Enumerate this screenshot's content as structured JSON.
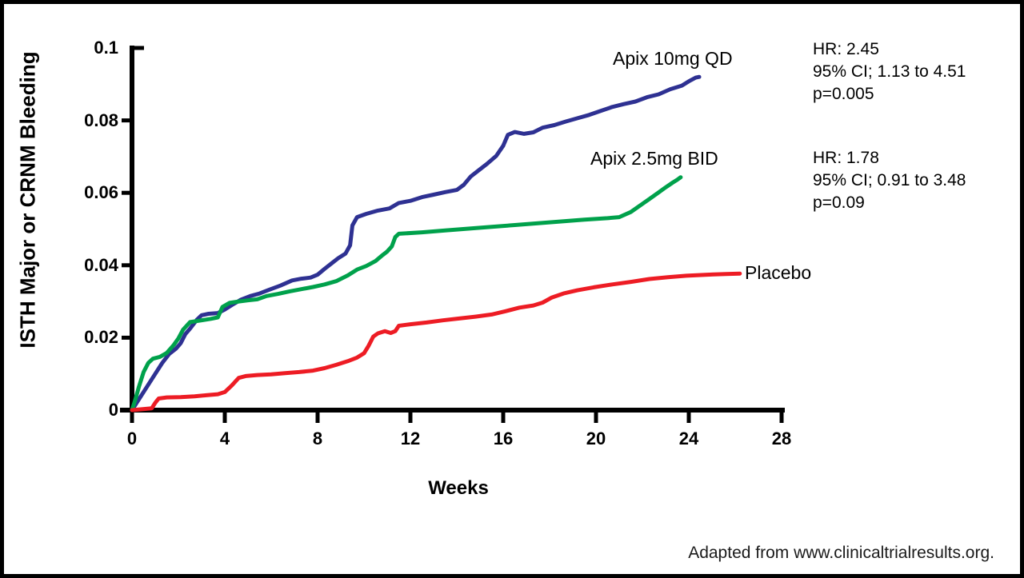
{
  "figure": {
    "source_note": "Adapted from www.clinicaltrialresults.org."
  },
  "chart_data": {
    "type": "line",
    "title": "",
    "xlabel": "Weeks",
    "ylabel": "ISTH Major or CRNM Bleeding",
    "xlim": [
      0,
      28
    ],
    "ylim": [
      0,
      0.1
    ],
    "x_ticks": [
      0,
      4,
      8,
      12,
      16,
      20,
      24,
      28
    ],
    "x_tick_labels": [
      "0",
      "4",
      "8",
      "12",
      "16",
      "20",
      "24",
      "28"
    ],
    "y_ticks": [
      0,
      0.02,
      0.04,
      0.06,
      0.08,
      0.1
    ],
    "y_tick_labels": [
      "0",
      "0.02",
      "0.04",
      "0.06",
      "0.08",
      "0.1"
    ],
    "grid": false,
    "legend_position": "inline-labels-at-curve-ends",
    "axis_color": "#000000",
    "series": [
      {
        "name": "Apix 10mg QD",
        "color": "#2E3192",
        "points": [
          [
            0,
            0
          ],
          [
            0.3,
            0.003
          ],
          [
            0.6,
            0.006
          ],
          [
            1.0,
            0.01
          ],
          [
            1.3,
            0.013
          ],
          [
            1.6,
            0.0155
          ],
          [
            1.9,
            0.017
          ],
          [
            2.1,
            0.0185
          ],
          [
            2.3,
            0.021
          ],
          [
            2.5,
            0.0225
          ],
          [
            2.8,
            0.025
          ],
          [
            3.0,
            0.0262
          ],
          [
            3.3,
            0.0266
          ],
          [
            3.7,
            0.0268
          ],
          [
            4.0,
            0.0278
          ],
          [
            4.3,
            0.029
          ],
          [
            4.7,
            0.0305
          ],
          [
            5.1,
            0.0315
          ],
          [
            5.5,
            0.0322
          ],
          [
            5.9,
            0.0332
          ],
          [
            6.4,
            0.0344
          ],
          [
            6.9,
            0.0358
          ],
          [
            7.3,
            0.0363
          ],
          [
            7.7,
            0.0366
          ],
          [
            8.0,
            0.0374
          ],
          [
            8.3,
            0.039
          ],
          [
            8.6,
            0.0405
          ],
          [
            8.9,
            0.042
          ],
          [
            9.2,
            0.0432
          ],
          [
            9.4,
            0.0455
          ],
          [
            9.5,
            0.051
          ],
          [
            9.7,
            0.0533
          ],
          [
            10.1,
            0.0542
          ],
          [
            10.6,
            0.0551
          ],
          [
            11.1,
            0.0557
          ],
          [
            11.5,
            0.0572
          ],
          [
            12.0,
            0.0578
          ],
          [
            12.5,
            0.0588
          ],
          [
            13.0,
            0.0595
          ],
          [
            13.5,
            0.0602
          ],
          [
            14.0,
            0.0608
          ],
          [
            14.3,
            0.0622
          ],
          [
            14.6,
            0.0645
          ],
          [
            14.9,
            0.066
          ],
          [
            15.3,
            0.068
          ],
          [
            15.7,
            0.0702
          ],
          [
            16.0,
            0.073
          ],
          [
            16.2,
            0.076
          ],
          [
            16.5,
            0.0768
          ],
          [
            16.9,
            0.0763
          ],
          [
            17.3,
            0.0767
          ],
          [
            17.7,
            0.078
          ],
          [
            18.2,
            0.0787
          ],
          [
            18.7,
            0.0797
          ],
          [
            19.2,
            0.0806
          ],
          [
            19.7,
            0.0815
          ],
          [
            20.2,
            0.0826
          ],
          [
            20.7,
            0.0837
          ],
          [
            21.2,
            0.0845
          ],
          [
            21.7,
            0.0852
          ],
          [
            22.2,
            0.0864
          ],
          [
            22.7,
            0.0872
          ],
          [
            23.2,
            0.0886
          ],
          [
            23.7,
            0.0896
          ],
          [
            24.0,
            0.0908
          ],
          [
            24.3,
            0.0918
          ],
          [
            24.45,
            0.092
          ]
        ]
      },
      {
        "name": "Apix 2.5mg BID",
        "color": "#00A14B",
        "points": [
          [
            0,
            0
          ],
          [
            0.15,
            0.003
          ],
          [
            0.3,
            0.0065
          ],
          [
            0.5,
            0.0105
          ],
          [
            0.7,
            0.013
          ],
          [
            0.9,
            0.0142
          ],
          [
            1.2,
            0.0147
          ],
          [
            1.5,
            0.0158
          ],
          [
            1.8,
            0.018
          ],
          [
            2.0,
            0.0198
          ],
          [
            2.2,
            0.0222
          ],
          [
            2.5,
            0.0243
          ],
          [
            3.0,
            0.0248
          ],
          [
            3.4,
            0.0252
          ],
          [
            3.7,
            0.0256
          ],
          [
            3.9,
            0.0285
          ],
          [
            4.2,
            0.0296
          ],
          [
            4.6,
            0.03
          ],
          [
            5.0,
            0.0303
          ],
          [
            5.4,
            0.0306
          ],
          [
            5.8,
            0.0315
          ],
          [
            6.3,
            0.0321
          ],
          [
            6.8,
            0.0328
          ],
          [
            7.3,
            0.0334
          ],
          [
            7.8,
            0.034
          ],
          [
            8.3,
            0.0347
          ],
          [
            8.8,
            0.0356
          ],
          [
            9.3,
            0.0372
          ],
          [
            9.7,
            0.0388
          ],
          [
            10.1,
            0.0398
          ],
          [
            10.5,
            0.0412
          ],
          [
            10.8,
            0.0428
          ],
          [
            11.0,
            0.0438
          ],
          [
            11.2,
            0.0452
          ],
          [
            11.35,
            0.0478
          ],
          [
            11.5,
            0.0487
          ],
          [
            12.5,
            0.0491
          ],
          [
            13.5,
            0.0496
          ],
          [
            14.5,
            0.0501
          ],
          [
            15.5,
            0.0506
          ],
          [
            16.5,
            0.0511
          ],
          [
            17.5,
            0.0516
          ],
          [
            18.5,
            0.0521
          ],
          [
            19.5,
            0.0526
          ],
          [
            20.5,
            0.053
          ],
          [
            21.0,
            0.0533
          ],
          [
            21.5,
            0.0547
          ],
          [
            21.9,
            0.0565
          ],
          [
            22.3,
            0.0583
          ],
          [
            22.7,
            0.0601
          ],
          [
            23.0,
            0.0615
          ],
          [
            23.3,
            0.0628
          ],
          [
            23.5,
            0.0636
          ],
          [
            23.65,
            0.0643
          ]
        ]
      },
      {
        "name": "Placebo",
        "color": "#ED1C24",
        "points": [
          [
            0,
            0
          ],
          [
            0.85,
            0.0005
          ],
          [
            1.0,
            0.002
          ],
          [
            1.15,
            0.0032
          ],
          [
            1.5,
            0.0035
          ],
          [
            2.1,
            0.0036
          ],
          [
            2.7,
            0.0038
          ],
          [
            3.2,
            0.0041
          ],
          [
            3.7,
            0.0044
          ],
          [
            4.0,
            0.005
          ],
          [
            4.3,
            0.0068
          ],
          [
            4.6,
            0.0089
          ],
          [
            4.9,
            0.0094
          ],
          [
            5.4,
            0.0097
          ],
          [
            6.0,
            0.0099
          ],
          [
            6.6,
            0.0102
          ],
          [
            7.2,
            0.0105
          ],
          [
            7.8,
            0.0109
          ],
          [
            8.3,
            0.0116
          ],
          [
            8.8,
            0.0125
          ],
          [
            9.3,
            0.0135
          ],
          [
            9.7,
            0.0145
          ],
          [
            10.0,
            0.0157
          ],
          [
            10.2,
            0.0178
          ],
          [
            10.4,
            0.0203
          ],
          [
            10.6,
            0.0212
          ],
          [
            10.9,
            0.0218
          ],
          [
            11.15,
            0.0213
          ],
          [
            11.35,
            0.0218
          ],
          [
            11.5,
            0.0233
          ],
          [
            12.0,
            0.0237
          ],
          [
            12.7,
            0.0242
          ],
          [
            13.4,
            0.0248
          ],
          [
            14.1,
            0.0253
          ],
          [
            14.8,
            0.0258
          ],
          [
            15.5,
            0.0264
          ],
          [
            16.1,
            0.0273
          ],
          [
            16.7,
            0.0283
          ],
          [
            17.3,
            0.0289
          ],
          [
            17.7,
            0.0297
          ],
          [
            18.1,
            0.0311
          ],
          [
            18.6,
            0.0322
          ],
          [
            19.2,
            0.0331
          ],
          [
            19.9,
            0.0339
          ],
          [
            20.7,
            0.0347
          ],
          [
            21.5,
            0.0354
          ],
          [
            22.3,
            0.0362
          ],
          [
            23.1,
            0.0367
          ],
          [
            23.9,
            0.0371
          ],
          [
            24.8,
            0.0374
          ],
          [
            25.6,
            0.0376
          ],
          [
            26.2,
            0.0377
          ]
        ]
      }
    ],
    "annotations": [
      {
        "id": "hr-apix-10mg-vs-placebo",
        "lines": [
          "HR: 2.45",
          "95% CI; 1.13 to 4.51",
          "p=0.005"
        ]
      },
      {
        "id": "hr-apix-2-5mg-vs-placebo",
        "lines": [
          "HR: 1.78",
          "95% CI; 0.91 to 3.48",
          "p=0.09"
        ]
      }
    ]
  }
}
